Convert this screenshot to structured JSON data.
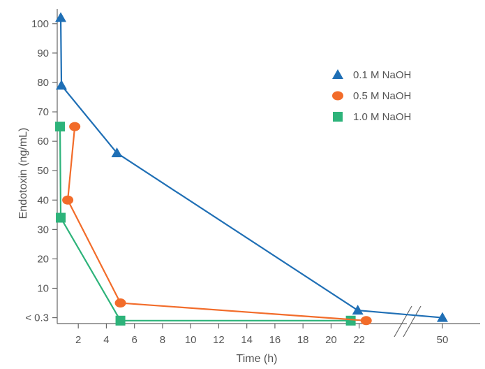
{
  "chart_data": {
    "type": "line",
    "xlabel": "Time (h)",
    "ylabel": "Endotoxin (ng/mL)",
    "x_ticks": [
      "2",
      "4",
      "6",
      "8",
      "10",
      "12",
      "14",
      "16",
      "18",
      "20",
      "22",
      "50"
    ],
    "x_tick_values": [
      2,
      4,
      6,
      8,
      10,
      12,
      14,
      16,
      18,
      20,
      22,
      50
    ],
    "y_ticks": [
      "< 0.3",
      "10",
      "20",
      "30",
      "40",
      "50",
      "60",
      "70",
      "80",
      "90",
      "100"
    ],
    "y_tick_values": [
      0,
      10,
      20,
      30,
      40,
      50,
      60,
      70,
      80,
      90,
      100
    ],
    "xlim": [
      0.5,
      24.5
    ],
    "ylim": [
      -2,
      104
    ],
    "axis_break": true,
    "legend_position": "top-right",
    "grid": false,
    "series": [
      {
        "name": "0.1 M NaOH",
        "color": "#1f6fb5",
        "marker": "triangle",
        "x": [
          0.75,
          0.8,
          4.75,
          21.9,
          50
        ],
        "y": [
          102,
          79,
          56,
          2.5,
          0
        ]
      },
      {
        "name": "0.5 M NaOH",
        "color": "#f26c2a",
        "marker": "circle",
        "x": [
          1.75,
          1.25,
          5,
          22.5
        ],
        "y": [
          65,
          40,
          5,
          -1
        ]
      },
      {
        "name": "1.0 M NaOH",
        "color": "#2db37a",
        "marker": "square",
        "x": [
          0.7,
          0.75,
          5,
          21.4
        ],
        "y": [
          65,
          34,
          -1,
          -1
        ]
      }
    ]
  }
}
